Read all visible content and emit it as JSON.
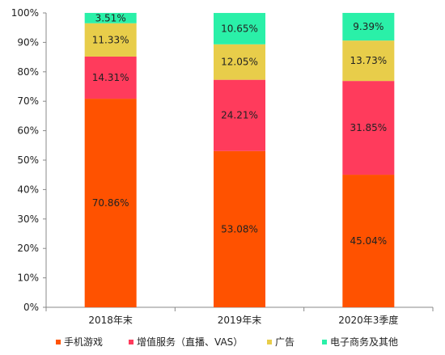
{
  "chart_data": {
    "type": "bar",
    "stacked": true,
    "percent": true,
    "categories": [
      "2018年末",
      "2019年末",
      "2020年3季度"
    ],
    "series": [
      {
        "name": "手机游戏",
        "color": "#FF5200",
        "values": [
          70.86,
          53.08,
          45.04
        ],
        "labels": [
          "70.86%",
          "53.08%",
          "45.04%"
        ]
      },
      {
        "name": "增值服务（直播、VAS）",
        "color": "#FF3B5C",
        "values": [
          14.31,
          24.21,
          31.85
        ],
        "labels": [
          "14.31%",
          "24.21%",
          "31.85%"
        ]
      },
      {
        "name": "广告",
        "color": "#E8CD4A",
        "values": [
          11.33,
          12.05,
          13.73
        ],
        "labels": [
          "11.33%",
          "12.05%",
          "13.73%"
        ]
      },
      {
        "name": "电子商务及其他",
        "color": "#2AF0A8",
        "values": [
          3.51,
          10.65,
          9.39
        ],
        "labels": [
          "3.51%",
          "10.65%",
          "9.39%"
        ]
      }
    ],
    "ylim": [
      0,
      100
    ],
    "yticks": [
      "0%",
      "10%",
      "20%",
      "30%",
      "40%",
      "50%",
      "60%",
      "70%",
      "80%",
      "90%",
      "100%"
    ],
    "grid": false,
    "legend": "bottom",
    "title": "",
    "xlabel": "",
    "ylabel": ""
  }
}
